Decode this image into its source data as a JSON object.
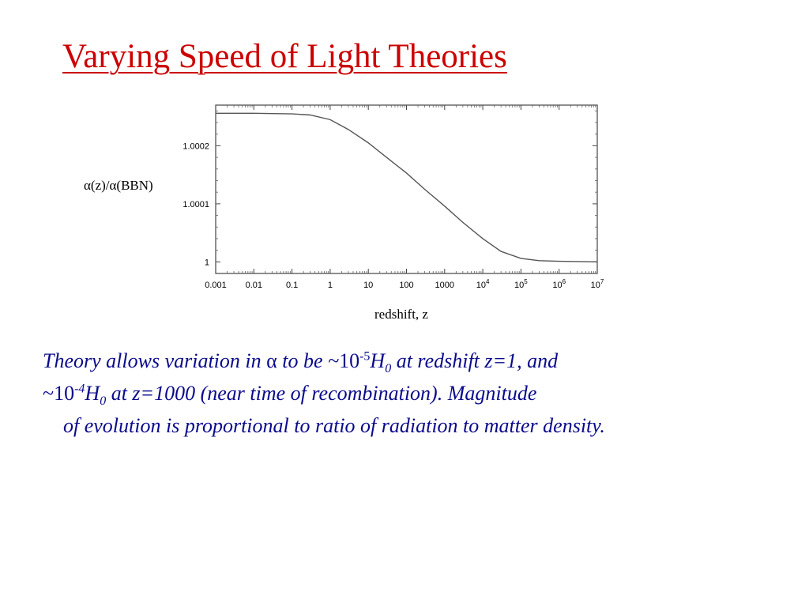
{
  "slide": {
    "title": "Varying Speed of Light Theories"
  },
  "chart_data": {
    "type": "line",
    "ylabel": "α(z)/α(BBN)",
    "xlabel": "redshift, z",
    "xscale": "log",
    "xlim": [
      0.001,
      10000000
    ],
    "ylim": [
      0.99998,
      1.00027
    ],
    "x_ticks": [
      0.001,
      0.01,
      0.1,
      1,
      10,
      100,
      1000,
      10000,
      100000,
      1000000,
      10000000
    ],
    "x_tick_labels": [
      {
        "base": "0.001",
        "exp": ""
      },
      {
        "base": "0.01",
        "exp": ""
      },
      {
        "base": "0.1",
        "exp": ""
      },
      {
        "base": "1",
        "exp": ""
      },
      {
        "base": "10",
        "exp": ""
      },
      {
        "base": "100",
        "exp": ""
      },
      {
        "base": "1000",
        "exp": ""
      },
      {
        "base": "10",
        "exp": "4"
      },
      {
        "base": "10",
        "exp": "5"
      },
      {
        "base": "10",
        "exp": "6"
      },
      {
        "base": "10",
        "exp": "7"
      }
    ],
    "y_ticks": [
      1,
      1.0001,
      1.0002
    ],
    "y_tick_labels": [
      "1",
      "1.0001",
      "1.0002"
    ],
    "grid": false,
    "series": [
      {
        "x": [
          0.001,
          0.01,
          0.1,
          0.3,
          1,
          3,
          10,
          30,
          100,
          300,
          1000,
          3000,
          10000,
          30000,
          100000,
          300000,
          1000000,
          10000000
        ],
        "y": [
          1.000256,
          1.000256,
          1.000255,
          1.000253,
          1.000245,
          1.000228,
          1.000205,
          1.00018,
          1.000153,
          1.000125,
          1.000096,
          1.000068,
          1.00004,
          1.000018,
          1.000006,
          1.000002,
          1.000001,
          1.0
        ]
      }
    ]
  },
  "body": {
    "line1_a": "Theory allows variation in ",
    "alpha": "α",
    "line1_b": " to be ~",
    "ten": "10",
    "exp1": "-5",
    "h": "H",
    "h_sub": "0",
    "line1_c": " at redshift z=1, and",
    "line2_a": "~",
    "exp2": "-4",
    "line2_b": " at z=1000 (near time of recombination).  Magnitude",
    "line3": "of evolution is proportional to ratio of radiation to matter density."
  }
}
